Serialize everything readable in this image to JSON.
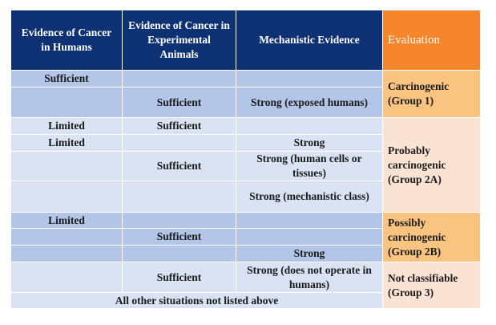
{
  "table": {
    "header": [
      "Evidence of Cancer in Humans",
      "Evidence of Cancer in Experimental Animals",
      "Mechanistic Evidence",
      "Evaluation"
    ],
    "rows": [
      {
        "humans": "Sufficient"
      },
      {
        "animals": "Sufficient",
        "mechanistic": "Strong (exposed humans)"
      },
      {
        "humans": "Limited",
        "animals": "Sufficient"
      },
      {
        "humans": "Limited",
        "mechanistic": "Strong"
      },
      {
        "animals": "Sufficient",
        "mechanistic": "Strong (human cells or tissues)"
      },
      {
        "mechanistic": "Strong (mechanistic class)"
      },
      {
        "humans": "Limited"
      },
      {
        "animals": "Sufficient"
      },
      {
        "mechanistic": "Strong"
      },
      {
        "animals": "Sufficient",
        "mechanistic": "Strong (does not operate in humans)"
      },
      {
        "note": "All other situations not listed above"
      }
    ],
    "evaluations": [
      "Carcinogenic (Group 1)",
      "Probably carcinogenic (Group 2A)",
      "Possibly carcinogenic (Group 2B)",
      "Not classifiable (Group 3)"
    ]
  }
}
